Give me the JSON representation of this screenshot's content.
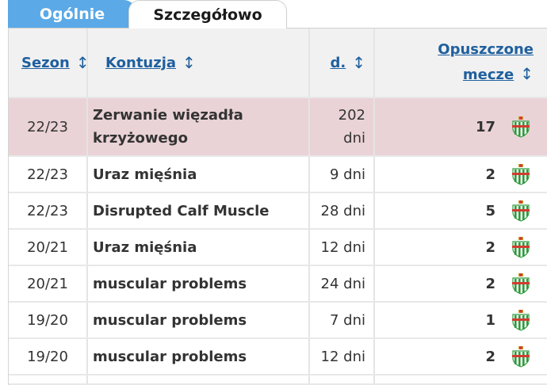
{
  "tabs": [
    {
      "label": "Ogólnie",
      "active": false
    },
    {
      "label": "Szczegółowo",
      "active": true
    }
  ],
  "columns": {
    "season": "Sezon",
    "injury": "Kontuzja",
    "days": "d.",
    "missed_line1": "Opuszczone",
    "missed_line2": "mecze",
    "sort_glyph": "↕"
  },
  "rows": [
    {
      "season": "22/23",
      "injury": "Zerwanie więzadła krzyżowego",
      "days": "202 dni",
      "missed": "17",
      "club_icon": "real-betis-crest-icon",
      "highlighted": true
    },
    {
      "season": "22/23",
      "injury": "Uraz mięśnia",
      "days": "9 dni",
      "missed": "2",
      "club_icon": "real-betis-crest-icon",
      "highlighted": false
    },
    {
      "season": "22/23",
      "injury": "Disrupted Calf Muscle",
      "days": "28 dni",
      "missed": "5",
      "club_icon": "real-betis-crest-icon",
      "highlighted": false
    },
    {
      "season": "20/21",
      "injury": "Uraz mięśnia",
      "days": "12 dni",
      "missed": "2",
      "club_icon": "real-betis-crest-icon",
      "highlighted": false
    },
    {
      "season": "20/21",
      "injury": "muscular problems",
      "days": "24 dni",
      "missed": "2",
      "club_icon": "real-betis-crest-icon",
      "highlighted": false
    },
    {
      "season": "19/20",
      "injury": "muscular problems",
      "days": "7 dni",
      "missed": "1",
      "club_icon": "real-betis-crest-icon",
      "highlighted": false
    },
    {
      "season": "19/20",
      "injury": "muscular problems",
      "days": "12 dni",
      "missed": "2",
      "club_icon": "real-betis-crest-icon",
      "highlighted": false
    }
  ],
  "colors": {
    "tab_active_bg": "#5ba9e6",
    "link": "#1f5f9e",
    "highlight_row": "#ead3d7",
    "header_bg": "#f1f1f1",
    "crest_green": "#2e9a3c"
  }
}
